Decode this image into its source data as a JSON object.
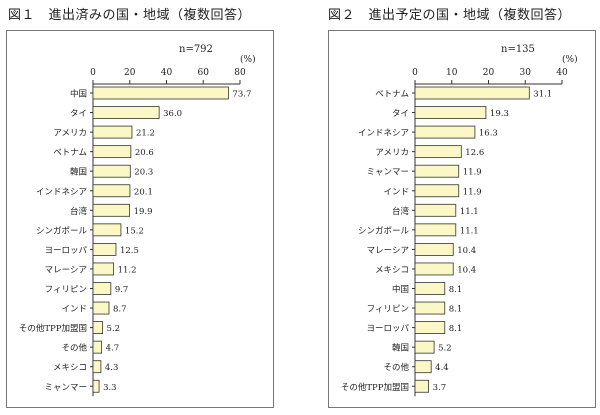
{
  "figures": [
    {
      "title": "図１　進出済みの国・地域（複数回答）"
    },
    {
      "title": "図２　進出予定の国・地域（複数回答）"
    }
  ],
  "colors": {
    "bar_fill": "#fbf8c6",
    "bar_stroke": "#333333",
    "axis": "#333333",
    "frame": "#777777"
  },
  "chart_data": [
    {
      "type": "bar",
      "orientation": "horizontal",
      "title": "",
      "n_label": "n=792",
      "unit_label": "(%)",
      "xlim": [
        0,
        80
      ],
      "ticks": [
        0,
        20,
        40,
        60,
        80
      ],
      "grid": false,
      "categories": [
        "中国",
        "タイ",
        "アメリカ",
        "ベトナム",
        "韓国",
        "インドネシア",
        "台湾",
        "シンガポール",
        "ヨーロッパ",
        "マレーシア",
        "フィリピン",
        "インド",
        "その他TPP加盟国",
        "その他",
        "メキシコ",
        "ミャンマー"
      ],
      "values": [
        73.7,
        36.0,
        21.2,
        20.6,
        20.3,
        20.1,
        19.9,
        15.2,
        12.5,
        11.2,
        9.7,
        8.7,
        5.2,
        4.7,
        4.3,
        3.3
      ],
      "value_labels": [
        "73.7",
        "36.0",
        "21.2",
        "20.6",
        "20.3",
        "20.1",
        "19.9",
        "15.2",
        "12.5",
        "11.2",
        "9.7",
        "8.7",
        "5.2",
        "4.7",
        "4.3",
        "3.3"
      ]
    },
    {
      "type": "bar",
      "orientation": "horizontal",
      "title": "",
      "n_label": "n=135",
      "unit_label": "(%)",
      "xlim": [
        0,
        40
      ],
      "ticks": [
        0,
        10,
        20,
        30,
        40
      ],
      "grid": false,
      "categories": [
        "ベトナム",
        "タイ",
        "インドネシア",
        "アメリカ",
        "ミャンマー",
        "インド",
        "台湾",
        "シンガポール",
        "マレーシア",
        "メキシコ",
        "中国",
        "フィリピン",
        "ヨーロッパ",
        "韓国",
        "その他",
        "その他TPP加盟国"
      ],
      "values": [
        31.1,
        19.3,
        16.3,
        12.6,
        11.9,
        11.9,
        11.1,
        11.1,
        10.4,
        10.4,
        8.1,
        8.1,
        8.1,
        5.2,
        4.4,
        3.7
      ],
      "value_labels": [
        "31.1",
        "19.3",
        "16.3",
        "12.6",
        "11.9",
        "11.9",
        "11.1",
        "11.1",
        "10.4",
        "10.4",
        "8.1",
        "8.1",
        "8.1",
        "5.2",
        "4.4",
        "3.7"
      ]
    }
  ]
}
